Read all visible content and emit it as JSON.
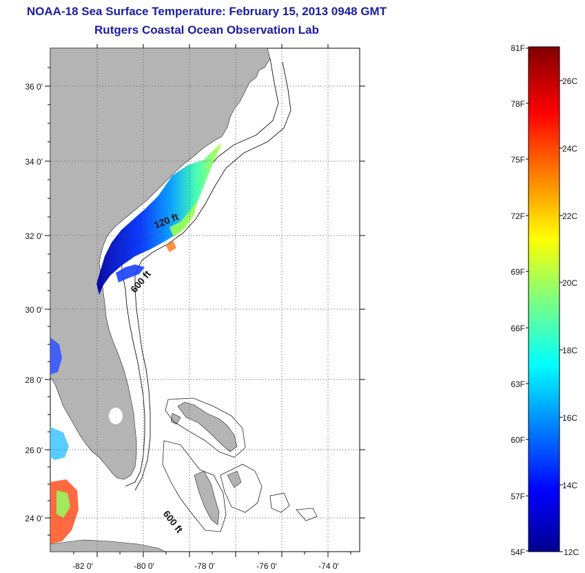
{
  "header": {
    "title": "NOAA-18 Sea Surface Temperature:  February 15, 2013 0948 GMT",
    "subtitle": "Rutgers Coastal Ocean Observation Lab"
  },
  "map": {
    "lat_labels": [
      "36 0'",
      "34 0'",
      "32 0'",
      "30 0'",
      "28 0'",
      "26 0'",
      "24 0'"
    ],
    "lon_labels": [
      "-82 0'",
      "-80 0'",
      "-78 0'",
      "-76 0'",
      "-74 0'"
    ],
    "contours": {
      "label_120ft": "120 ft",
      "label_600ft_north": "600 ft",
      "label_600ft_south": "600 ft"
    },
    "colors": {
      "land": "#b4b4b4",
      "ocean": "#ffffff",
      "grid": "#555555"
    }
  },
  "colorbar": {
    "fahrenheit_labels": [
      "81F",
      "78F",
      "75F",
      "72F",
      "69F",
      "66F",
      "63F",
      "60F",
      "57F",
      "54F"
    ],
    "celsius_labels": [
      "26C",
      "24C",
      "22C",
      "20C",
      "18C",
      "16C",
      "14C",
      "12C"
    ],
    "min_c": 12,
    "max_c": 27
  }
}
